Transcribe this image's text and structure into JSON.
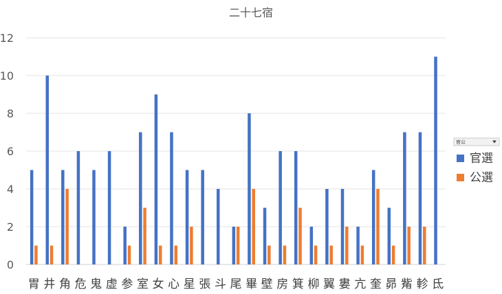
{
  "chart_data": {
    "type": "bar",
    "title": "二十七宿",
    "xlabel": "",
    "ylabel": "",
    "ylim": [
      0,
      12
    ],
    "yticks": [
      "0",
      "2",
      "4",
      "6",
      "8",
      "10",
      "12"
    ],
    "grid": true,
    "legend_position": "right",
    "filter_label": "官公",
    "categories": [
      "胃",
      "井",
      "角",
      "危",
      "鬼",
      "虚",
      "参",
      "室",
      "女",
      "心",
      "星",
      "張",
      "斗",
      "尾",
      "畢",
      "壁",
      "房",
      "箕",
      "柳",
      "翼",
      "婁",
      "亢",
      "奎",
      "昴",
      "觜",
      "軫",
      "氐"
    ],
    "series": [
      {
        "name": "官選",
        "color": "#4472C4",
        "values": [
          5,
          10,
          5,
          6,
          5,
          6,
          2,
          7,
          9,
          7,
          5,
          5,
          4,
          2,
          8,
          3,
          6,
          6,
          2,
          4,
          4,
          2,
          5,
          3,
          7,
          7,
          11
        ]
      },
      {
        "name": "公選",
        "color": "#ED7D31",
        "values": [
          1,
          1,
          4,
          0,
          0,
          0,
          1,
          3,
          1,
          1,
          2,
          0,
          0,
          2,
          4,
          1,
          1,
          3,
          1,
          1,
          2,
          1,
          4,
          1,
          2,
          2,
          0
        ]
      }
    ]
  }
}
